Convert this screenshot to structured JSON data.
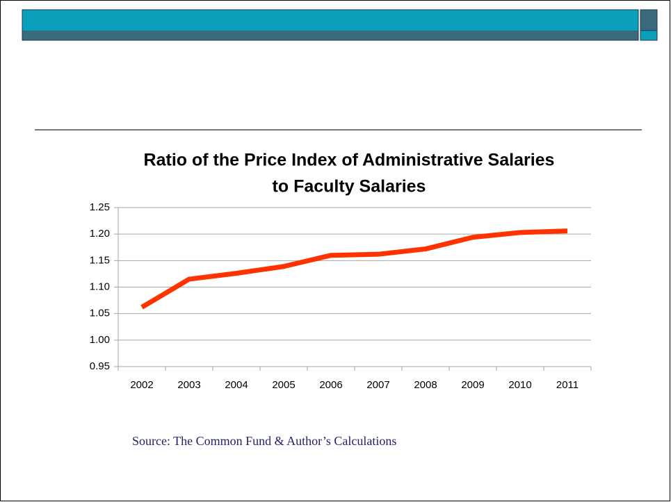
{
  "chart_data": {
    "type": "line",
    "title": [
      "Ratio of the Price Index of Administrative Salaries",
      "to Faculty Salaries"
    ],
    "categories": [
      "2002",
      "2003",
      "2004",
      "2005",
      "2006",
      "2007",
      "2008",
      "2009",
      "2010",
      "2011"
    ],
    "series": [
      {
        "name": null,
        "color": "#ff3300",
        "values": [
          1.062,
          1.115,
          1.126,
          1.139,
          1.16,
          1.162,
          1.172,
          1.194,
          1.203,
          1.206
        ]
      }
    ],
    "ylim": [
      0.95,
      1.25
    ],
    "yticks": [
      {
        "value": 0.95,
        "label": "0.95"
      },
      {
        "value": 1.0,
        "label": "1.00"
      },
      {
        "value": 1.05,
        "label": "1.05"
      },
      {
        "value": 1.1,
        "label": "1.10"
      },
      {
        "value": 1.15,
        "label": "1.15"
      },
      {
        "value": 1.2,
        "label": "1.20"
      },
      1.25
    ],
    "grid": true,
    "source": "Source: The Common Fund & Author’s Calculations"
  }
}
